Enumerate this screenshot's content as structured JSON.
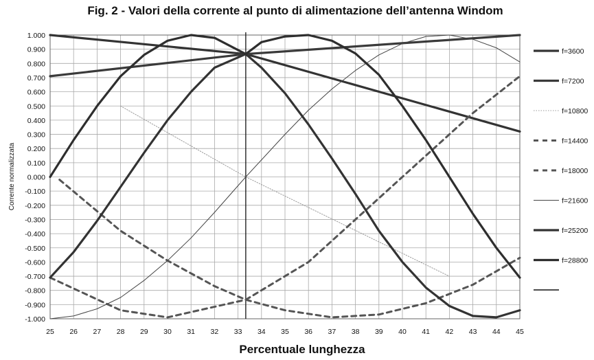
{
  "chart_data": {
    "type": "line",
    "title": "Fig. 2 - Valori della corrente al punto di alimentazione dell’antenna Windom",
    "xlabel": "Percentuale lunghezza",
    "ylabel": "Corrente normalizzata",
    "xlim": [
      25,
      45
    ],
    "ylim": [
      -1.0,
      1.0
    ],
    "x_ticks": [
      "25",
      "26",
      "27",
      "28",
      "29",
      "30",
      "31",
      "32",
      "33",
      "34",
      "35",
      "36",
      "37",
      "38",
      "39",
      "40",
      "41",
      "42",
      "43",
      "44",
      "45"
    ],
    "y_ticks": [
      "1.000",
      "0.900",
      "0.800",
      "0.700",
      "0.600",
      "0.500",
      "0.400",
      "0.300",
      "0.200",
      "0.100",
      "0.000",
      "-0.100",
      "-0.200",
      "-0.300",
      "-0.400",
      "-0.500",
      "-0.600",
      "-0.700",
      "-0.800",
      "-0.900",
      "-1.000"
    ],
    "grid": true,
    "legend_position": "right",
    "marker_x": 33.33,
    "series": [
      {
        "name": "f=3600",
        "style": "thick",
        "color": "#333333",
        "x": [
          25,
          33.33,
          45
        ],
        "y": [
          1.0,
          0.866,
          0.32
        ]
      },
      {
        "name": "f=7200",
        "style": "thick",
        "color": "#3a3a3a",
        "x": [
          25,
          33.33,
          45
        ],
        "y": [
          0.71,
          0.866,
          1.0
        ]
      },
      {
        "name": "f=10800",
        "style": "dotted",
        "color": "#9a9a9a",
        "x": [
          28,
          33.33,
          42
        ],
        "y": [
          0.5,
          0.0,
          -0.7
        ]
      },
      {
        "name": "f=14400",
        "style": "dashed",
        "color": "#555555",
        "x": [
          25,
          28,
          30,
          33.33,
          36,
          38,
          40,
          43,
          45
        ],
        "y": [
          -0.71,
          -0.94,
          -0.99,
          -0.866,
          -0.6,
          -0.3,
          0.0,
          0.45,
          0.71
        ]
      },
      {
        "name": "f=18000",
        "style": "dashed",
        "color": "#555555",
        "x": [
          25.4,
          28,
          30,
          32,
          33.33,
          35,
          37,
          39,
          41,
          43,
          45
        ],
        "y": [
          -0.02,
          -0.38,
          -0.59,
          -0.77,
          -0.866,
          -0.94,
          -0.99,
          -0.97,
          -0.89,
          -0.76,
          -0.57
        ]
      },
      {
        "name": "f=21600",
        "style": "thin",
        "color": "#444444",
        "x": [
          25,
          26,
          27,
          28,
          29,
          30,
          31,
          32,
          33.33,
          35,
          36,
          37,
          38,
          39,
          40,
          41,
          42,
          43,
          44,
          45
        ],
        "y": [
          -1.0,
          -0.98,
          -0.93,
          -0.85,
          -0.73,
          -0.59,
          -0.43,
          -0.25,
          0.0,
          0.3,
          0.47,
          0.62,
          0.75,
          0.86,
          0.94,
          0.99,
          1.0,
          0.97,
          0.91,
          0.81
        ]
      },
      {
        "name": "f=25200",
        "style": "thick",
        "color": "#333333",
        "x": [
          25,
          26,
          27,
          28,
          29,
          30,
          31,
          32,
          33.33,
          34,
          35,
          36,
          37,
          38,
          39,
          40,
          41,
          42,
          43,
          44,
          45
        ],
        "y": [
          -0.71,
          -0.53,
          -0.31,
          -0.07,
          0.17,
          0.4,
          0.6,
          0.77,
          0.866,
          0.77,
          0.59,
          0.37,
          0.13,
          -0.12,
          -0.38,
          -0.6,
          -0.78,
          -0.91,
          -0.98,
          -0.99,
          -0.94
        ]
      },
      {
        "name": "f=28800",
        "style": "thick",
        "color": "#2e2e2e",
        "x": [
          25,
          26,
          27,
          28,
          29,
          30,
          31,
          32,
          33.33,
          34,
          35,
          36,
          37,
          38,
          39,
          40,
          41,
          42,
          43,
          44,
          45
        ],
        "y": [
          0.0,
          0.26,
          0.5,
          0.71,
          0.86,
          0.96,
          1.0,
          0.98,
          0.866,
          0.95,
          0.99,
          1.0,
          0.96,
          0.87,
          0.72,
          0.5,
          0.26,
          0.0,
          -0.26,
          -0.5,
          -0.71
        ]
      }
    ]
  }
}
